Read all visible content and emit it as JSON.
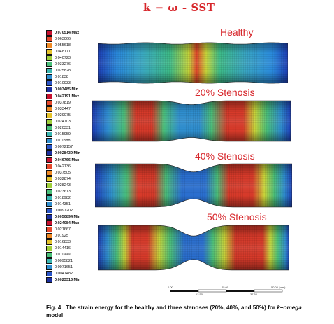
{
  "title": "k − ω - SST",
  "cases": [
    {
      "label": "Healthy",
      "stenosis": 0,
      "legend": [
        "0.070514 Max",
        "0.063066",
        "0.055618",
        "0.048171",
        "0.040723",
        "0.033276",
        "0.025828",
        "0.01838",
        "0.010933",
        "0.003485 Min"
      ],
      "bands": [
        [
          "#1e3fb8",
          0
        ],
        [
          "#2a8be0",
          0.1
        ],
        [
          "#3aa8c8",
          0.22
        ],
        [
          "#3fbf8a",
          0.38
        ],
        [
          "#c9d73a",
          0.48
        ],
        [
          "#e3482b",
          0.52
        ],
        [
          "#c9d73a",
          0.57
        ],
        [
          "#3fbf8a",
          0.64
        ],
        [
          "#3aa8c8",
          0.78
        ],
        [
          "#2a8be0",
          0.92
        ],
        [
          "#1e3fb8",
          1
        ]
      ]
    },
    {
      "label": "20% Stenosis",
      "stenosis": 0.2,
      "legend": [
        "0.042191 Max",
        "0.037819",
        "0.033447",
        "0.029075",
        "0.024703",
        "0.020331",
        "0.015959",
        "0.011588",
        "0.0072157",
        "0.0028439 Min"
      ],
      "bands": [
        [
          "#1e3fb8",
          0
        ],
        [
          "#2f8fd0",
          0.08
        ],
        [
          "#49c07a",
          0.16
        ],
        [
          "#d83a2a",
          0.22
        ],
        [
          "#d83a2a",
          0.3
        ],
        [
          "#49c07a",
          0.36
        ],
        [
          "#2f8fd0",
          0.44
        ],
        [
          "#2f8fd0",
          0.54
        ],
        [
          "#49c07a",
          0.6
        ],
        [
          "#d83a2a",
          0.68
        ],
        [
          "#d83a2a",
          0.76
        ],
        [
          "#c9d73a",
          0.82
        ],
        [
          "#49c07a",
          0.88
        ],
        [
          "#2f8fd0",
          0.95
        ],
        [
          "#1e3fb8",
          1
        ]
      ]
    },
    {
      "label": "40% Stenosis",
      "stenosis": 0.4,
      "legend": [
        "0.046766 Max",
        "0.042136",
        "0.037505",
        "0.032874",
        "0.028243",
        "0.023613",
        "0.018982",
        "0.014351",
        "0.0097202",
        "0.0050894 Min"
      ],
      "bands": [
        [
          "#1e3fb8",
          0
        ],
        [
          "#2f8fd0",
          0.08
        ],
        [
          "#49c07a",
          0.16
        ],
        [
          "#d83a2a",
          0.22
        ],
        [
          "#d83a2a",
          0.3
        ],
        [
          "#49c07a",
          0.36
        ],
        [
          "#2a6fd0",
          0.44
        ],
        [
          "#2a6fd0",
          0.56
        ],
        [
          "#49c07a",
          0.62
        ],
        [
          "#d83a2a",
          0.68
        ],
        [
          "#d83a2a",
          0.8
        ],
        [
          "#c9d73a",
          0.86
        ],
        [
          "#49c07a",
          0.91
        ],
        [
          "#2f8fd0",
          0.96
        ],
        [
          "#1e3fb8",
          1
        ]
      ]
    },
    {
      "label": "50% Stenosis",
      "stenosis": 0.5,
      "legend": [
        "0.024084 Max",
        "0.021667",
        "0.01925",
        "0.016833",
        "0.014416",
        "0.011999",
        "0.0095821",
        "0.0071651",
        "0.0047482",
        "0.0023313 Min"
      ],
      "bands": [
        [
          "#1e3fb8",
          0
        ],
        [
          "#2f8fd0",
          0.05
        ],
        [
          "#49c07a",
          0.1
        ],
        [
          "#c9d73a",
          0.14
        ],
        [
          "#d83a2a",
          0.18
        ],
        [
          "#d83a2a",
          0.26
        ],
        [
          "#c9d73a",
          0.32
        ],
        [
          "#49c07a",
          0.38
        ],
        [
          "#2a6fd0",
          0.45
        ],
        [
          "#2a6fd0",
          0.55
        ],
        [
          "#49c07a",
          0.6
        ],
        [
          "#c9d73a",
          0.66
        ],
        [
          "#d83a2a",
          0.72
        ],
        [
          "#d83a2a",
          0.86
        ],
        [
          "#c9d73a",
          0.9
        ],
        [
          "#49c07a",
          0.94
        ],
        [
          "#2f8fd0",
          0.98
        ],
        [
          "#1e3fb8",
          1
        ]
      ]
    }
  ],
  "legend_colors": [
    "#c8102e",
    "#e7482b",
    "#f08a24",
    "#e6c32a",
    "#9fcf3a",
    "#49c07a",
    "#39b7b2",
    "#2f8fd0",
    "#2a55c8",
    "#1b2fa0"
  ],
  "scale_labels": {
    "tick0": "0.00",
    "tick_mid": "25.00",
    "tick_end": "50.00 (mm)",
    "sub1": "12.50",
    "sub2": "37.50"
  },
  "caption": {
    "fig": "Fig. 4",
    "text_a": "The strain energy for the healthy and three stenoses (20%, 40%, and 50%) for ",
    "model_italic": "k–omega",
    "text_b": " model"
  }
}
